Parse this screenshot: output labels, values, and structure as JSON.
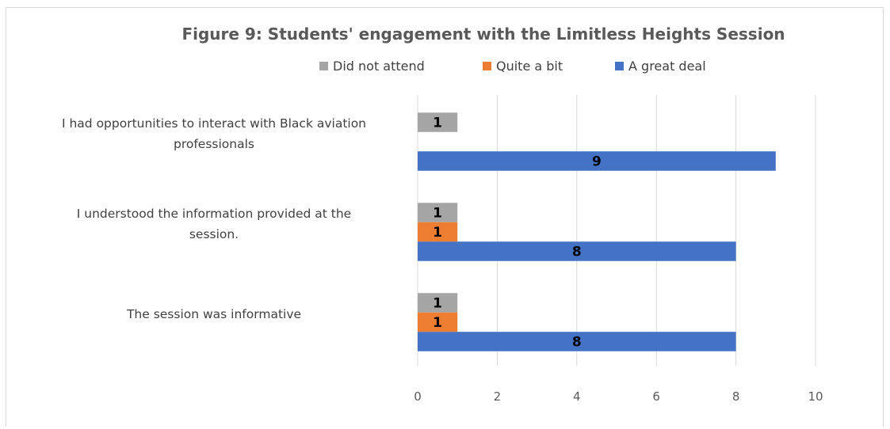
{
  "chart_data": {
    "type": "bar",
    "orientation": "horizontal",
    "title": "Figure 9: Students' engagement with the Limitless Heights Session",
    "xlabel": "",
    "ylabel": "",
    "xlim": [
      0,
      10
    ],
    "ticks": [
      "0",
      "2",
      "4",
      "6",
      "8",
      "10"
    ],
    "grid": true,
    "legend_position": "top",
    "categories": [
      [
        "I had opportunities to interact with Black aviation",
        "professionals"
      ],
      [
        "I understood the information provided at the",
        "session."
      ],
      [
        "The session was informative"
      ]
    ],
    "series": [
      {
        "name": "Did not attend",
        "color": "#a5a5a5",
        "values": [
          1,
          1,
          1
        ]
      },
      {
        "name": "Quite a bit",
        "color": "#ed7d31",
        "values": [
          null,
          1,
          1
        ]
      },
      {
        "name": "A great deal",
        "color": "#4472c4",
        "values": [
          9,
          8,
          8
        ]
      }
    ]
  }
}
